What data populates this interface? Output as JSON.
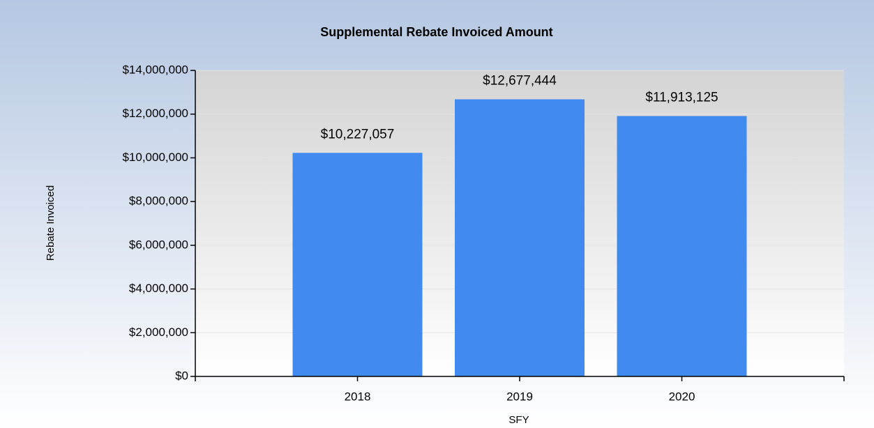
{
  "chart_data": {
    "type": "bar",
    "title": "Supplemental Rebate Invoiced Amount",
    "x_label": "SFY",
    "y_label": "Rebate Invoiced",
    "categories": [
      "2018",
      "2019",
      "2020"
    ],
    "values": [
      10227057,
      12677444,
      11913125
    ],
    "value_labels": [
      "$10,227,057",
      "$12,677,444",
      "$11,913,125"
    ],
    "color": "#418af0",
    "ylim": [
      0,
      14000000
    ],
    "yticks": [
      {
        "value": 0,
        "label": "$0"
      },
      {
        "value": 2000000,
        "label": "$2,000,000"
      },
      {
        "value": 4000000,
        "label": "$4,000,000"
      },
      {
        "value": 6000000,
        "label": "$6,000,000"
      },
      {
        "value": 8000000,
        "label": "$8,000,000"
      },
      {
        "value": 10000000,
        "label": "$10,000,000"
      },
      {
        "value": 12000000,
        "label": "$12,000,000"
      },
      {
        "value": 14000000,
        "label": "$14,000,000"
      }
    ],
    "grid": true
  }
}
